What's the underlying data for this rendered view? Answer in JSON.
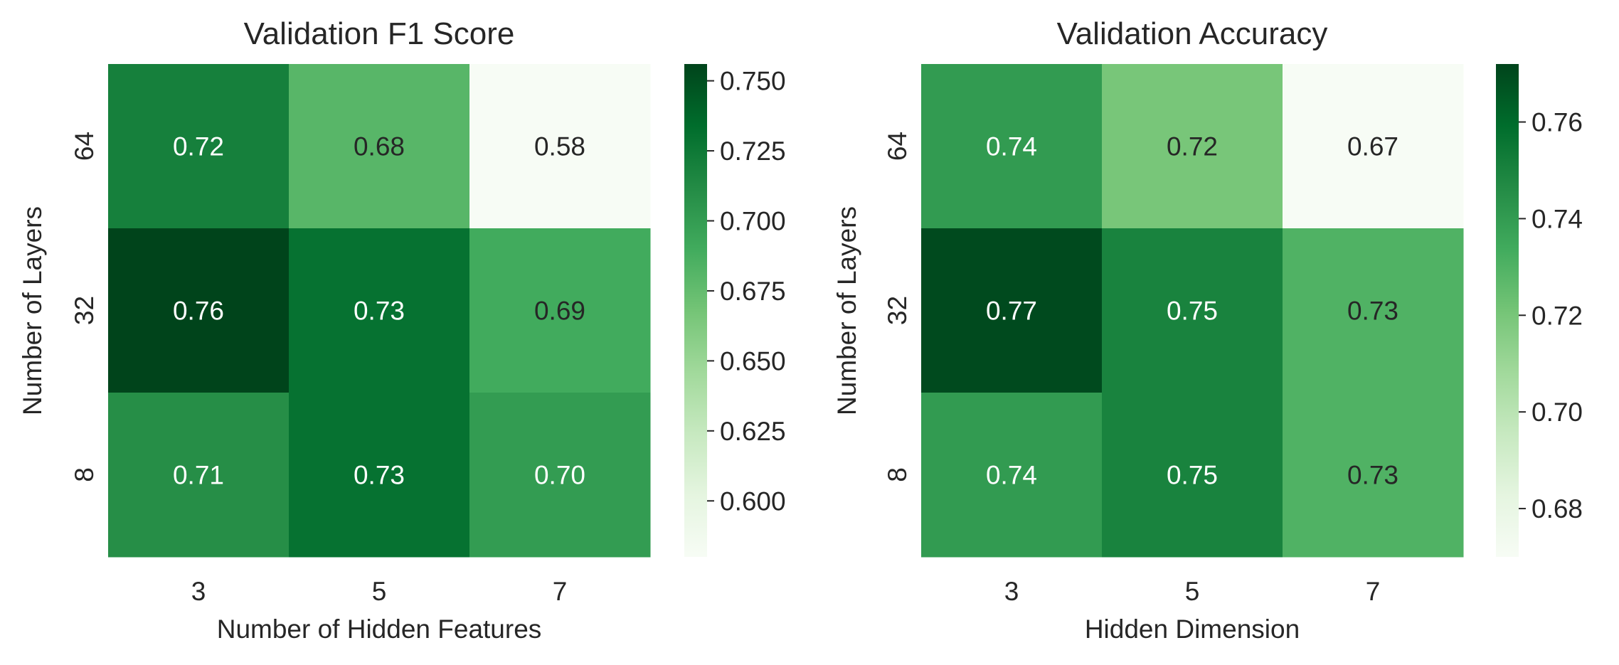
{
  "chart_data": [
    {
      "type": "heatmap",
      "title": "Validation F1 Score",
      "xlabel": "Number of Hidden Features",
      "ylabel": "Number of Layers",
      "x_categories": [
        "3",
        "5",
        "7"
      ],
      "y_categories": [
        "64",
        "32",
        "8"
      ],
      "values": [
        [
          0.72,
          0.68,
          0.58
        ],
        [
          0.76,
          0.73,
          0.69
        ],
        [
          0.71,
          0.73,
          0.7
        ]
      ],
      "cell_labels": [
        [
          "0.72",
          "0.68",
          "0.58"
        ],
        [
          "0.76",
          "0.73",
          "0.69"
        ],
        [
          "0.71",
          "0.73",
          "0.70"
        ]
      ],
      "colormap": "Greens",
      "color_range": [
        0.58,
        0.756
      ],
      "colorbar_ticks": [
        0.6,
        0.625,
        0.65,
        0.675,
        0.7,
        0.725,
        0.75
      ],
      "colorbar_tick_labels": [
        "0.600",
        "0.625",
        "0.650",
        "0.675",
        "0.700",
        "0.725",
        "0.750"
      ]
    },
    {
      "type": "heatmap",
      "title": "Validation Accuracy",
      "xlabel": "Hidden Dimension",
      "ylabel": "Number of Layers",
      "x_categories": [
        "3",
        "5",
        "7"
      ],
      "y_categories": [
        "64",
        "32",
        "8"
      ],
      "values": [
        [
          0.74,
          0.72,
          0.67
        ],
        [
          0.77,
          0.75,
          0.73
        ],
        [
          0.74,
          0.75,
          0.73
        ]
      ],
      "cell_labels": [
        [
          "0.74",
          "0.72",
          "0.67"
        ],
        [
          "0.77",
          "0.75",
          "0.73"
        ],
        [
          "0.74",
          "0.75",
          "0.73"
        ]
      ],
      "colormap": "Greens",
      "color_range": [
        0.67,
        0.772
      ],
      "colorbar_ticks": [
        0.68,
        0.7,
        0.72,
        0.74,
        0.76
      ],
      "colorbar_tick_labels": [
        "0.68",
        "0.70",
        "0.72",
        "0.74",
        "0.76"
      ]
    }
  ]
}
